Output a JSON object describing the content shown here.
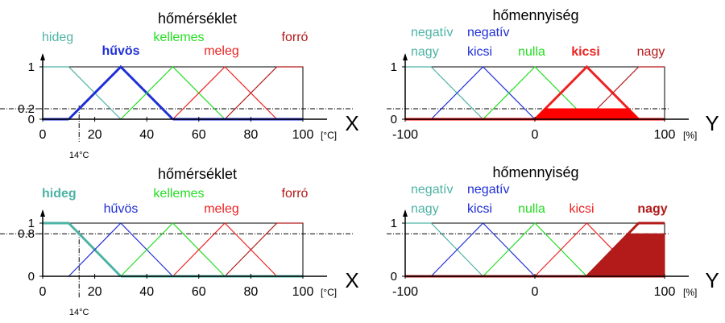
{
  "colors": {
    "teal": "#4db3a4",
    "blue": "#1f2fd6",
    "green": "#22dd22",
    "red": "#ee2222",
    "darkred": "#b31b1b",
    "hot": "#ff0000",
    "axis": "#000000"
  },
  "chart_data": [
    {
      "type": "line",
      "title": "hőmérséklet",
      "axis_symbol": "X",
      "unit": "[°C]",
      "xlim": [
        0,
        100
      ],
      "ylim": [
        0,
        1
      ],
      "x_ticks": [
        "0",
        "20",
        "40",
        "60",
        "80",
        "100"
      ],
      "y_ticks": [
        "0",
        "0.2",
        "1"
      ],
      "input_marker": "14°C",
      "input_value": 14,
      "activation": 0.2,
      "active_set": "hűvös",
      "series": [
        {
          "name": "hideg",
          "x": [
            0,
            10,
            30
          ],
          "y": [
            1,
            1,
            0
          ],
          "color": "teal"
        },
        {
          "name": "hűvös",
          "x": [
            10,
            30,
            50
          ],
          "y": [
            0,
            1,
            0
          ],
          "color": "blue"
        },
        {
          "name": "kellemes",
          "x": [
            30,
            50,
            70
          ],
          "y": [
            0,
            1,
            0
          ],
          "color": "green"
        },
        {
          "name": "meleg",
          "x": [
            50,
            70,
            90
          ],
          "y": [
            0,
            1,
            0
          ],
          "color": "red"
        },
        {
          "name": "forró",
          "x": [
            70,
            90,
            100
          ],
          "y": [
            0,
            1,
            1
          ],
          "color": "darkred"
        }
      ]
    },
    {
      "type": "line",
      "title": "hőmennyiség",
      "axis_symbol": "Y",
      "unit": "[%]",
      "xlim": [
        -100,
        100
      ],
      "ylim": [
        0,
        1
      ],
      "x_ticks": [
        "-100",
        "0",
        "100"
      ],
      "y_ticks": [
        "0",
        "1"
      ],
      "activation": 0.2,
      "active_set": "kicsi",
      "series": [
        {
          "name": "negatív nagy",
          "x": [
            -100,
            -80,
            -40
          ],
          "y": [
            1,
            1,
            0
          ],
          "color": "teal"
        },
        {
          "name": "negatív kicsi",
          "x": [
            -80,
            -40,
            0
          ],
          "y": [
            0,
            1,
            0
          ],
          "color": "blue"
        },
        {
          "name": "nulla",
          "x": [
            -40,
            0,
            40
          ],
          "y": [
            0,
            1,
            0
          ],
          "color": "green"
        },
        {
          "name": "kicsi",
          "x": [
            0,
            40,
            80
          ],
          "y": [
            0,
            1,
            0
          ],
          "color": "red"
        },
        {
          "name": "nagy",
          "x": [
            40,
            80,
            100
          ],
          "y": [
            0,
            1,
            1
          ],
          "color": "darkred"
        }
      ]
    },
    {
      "type": "line",
      "title": "hőmérséklet",
      "axis_symbol": "X",
      "unit": "[°C]",
      "xlim": [
        0,
        100
      ],
      "ylim": [
        0,
        1
      ],
      "x_ticks": [
        "0",
        "20",
        "40",
        "60",
        "80",
        "100"
      ],
      "y_ticks": [
        "0",
        "0.8",
        "1"
      ],
      "input_marker": "14°C",
      "input_value": 14,
      "activation": 0.8,
      "active_set": "hideg",
      "series": [
        {
          "name": "hideg",
          "x": [
            0,
            10,
            30
          ],
          "y": [
            1,
            1,
            0
          ],
          "color": "teal"
        },
        {
          "name": "hűvös",
          "x": [
            10,
            30,
            50
          ],
          "y": [
            0,
            1,
            0
          ],
          "color": "blue"
        },
        {
          "name": "kellemes",
          "x": [
            30,
            50,
            70
          ],
          "y": [
            0,
            1,
            0
          ],
          "color": "green"
        },
        {
          "name": "meleg",
          "x": [
            50,
            70,
            90
          ],
          "y": [
            0,
            1,
            0
          ],
          "color": "red"
        },
        {
          "name": "forró",
          "x": [
            70,
            90,
            100
          ],
          "y": [
            0,
            1,
            1
          ],
          "color": "darkred"
        }
      ]
    },
    {
      "type": "line",
      "title": "hőmennyiség",
      "axis_symbol": "Y",
      "unit": "[%]",
      "xlim": [
        -100,
        100
      ],
      "ylim": [
        0,
        1
      ],
      "x_ticks": [
        "-100",
        "0",
        "100"
      ],
      "y_ticks": [
        "0",
        "1"
      ],
      "activation": 0.8,
      "active_set": "nagy",
      "series": [
        {
          "name": "negatív nagy",
          "x": [
            -100,
            -80,
            -40
          ],
          "y": [
            1,
            1,
            0
          ],
          "color": "teal"
        },
        {
          "name": "negatív kicsi",
          "x": [
            -80,
            -40,
            0
          ],
          "y": [
            0,
            1,
            0
          ],
          "color": "blue"
        },
        {
          "name": "nulla",
          "x": [
            -40,
            0,
            40
          ],
          "y": [
            0,
            1,
            0
          ],
          "color": "green"
        },
        {
          "name": "kicsi",
          "x": [
            0,
            40,
            80
          ],
          "y": [
            0,
            1,
            0
          ],
          "color": "red"
        },
        {
          "name": "nagy",
          "x": [
            40,
            80,
            100
          ],
          "y": [
            0,
            1,
            1
          ],
          "color": "darkred"
        }
      ]
    }
  ]
}
